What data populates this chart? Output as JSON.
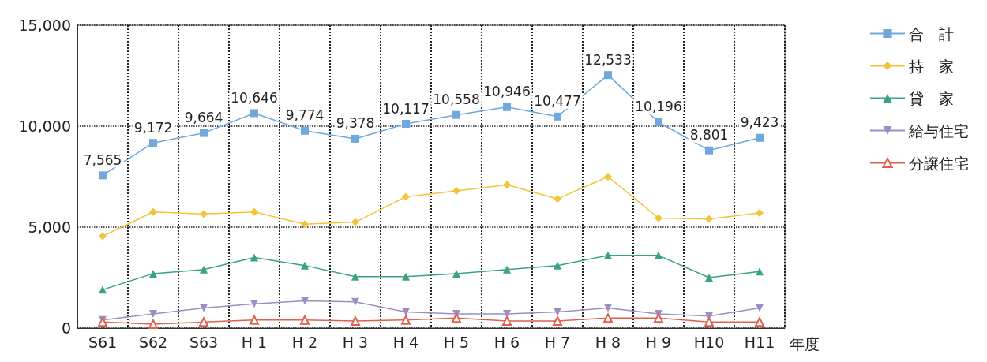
{
  "chart_data": {
    "type": "line",
    "xlabel": "年度",
    "categories": [
      "S61",
      "S62",
      "S63",
      "H 1",
      "H 2",
      "H 3",
      "H 4",
      "H 5",
      "H 6",
      "H 7",
      "H 8",
      "H 9",
      "H10",
      "H11"
    ],
    "ylim": [
      0,
      15000
    ],
    "yticks": [
      {
        "value": 0,
        "label": "0"
      },
      {
        "value": 5000,
        "label": "5,000"
      },
      {
        "value": 10000,
        "label": "10,000"
      },
      {
        "value": 15000,
        "label": "15,000"
      }
    ],
    "grid": true,
    "legend": "right",
    "line_style": "solid",
    "series": [
      {
        "name": "合　計",
        "color": "#6fa8dc",
        "marker": "square",
        "values": [
          7565,
          9172,
          9664,
          10646,
          9774,
          9378,
          10117,
          10558,
          10946,
          10477,
          12533,
          10196,
          8801,
          9423
        ],
        "value_labels": [
          "7,565",
          "9,172",
          "9,664",
          "10,646",
          "9,774",
          "9,378",
          "10,117",
          "10,558",
          "10,946",
          "10,477",
          "12,533",
          "10,196",
          "8,801",
          "9,423"
        ]
      },
      {
        "name": "持　家",
        "color": "#f2c43c",
        "marker": "diamond",
        "values": [
          4550,
          5750,
          5650,
          5750,
          5150,
          5250,
          6500,
          6800,
          7100,
          6400,
          7500,
          5450,
          5400,
          5700
        ]
      },
      {
        "name": "貸　家",
        "color": "#3aa37a",
        "marker": "triangle",
        "values": [
          1900,
          2700,
          2900,
          3500,
          3100,
          2550,
          2550,
          2700,
          2900,
          3100,
          3600,
          3600,
          2500,
          2800
        ]
      },
      {
        "name": "給与住宅",
        "color": "#9b8ec4",
        "marker": "triangle-down",
        "values": [
          400,
          700,
          1000,
          1200,
          1350,
          1300,
          800,
          700,
          700,
          800,
          1000,
          700,
          600,
          1000
        ]
      },
      {
        "name": "分譲住宅",
        "color": "#e06050",
        "marker": "triangle-open",
        "values": [
          300,
          200,
          300,
          400,
          400,
          350,
          400,
          500,
          350,
          350,
          500,
          500,
          300,
          300
        ]
      }
    ]
  }
}
